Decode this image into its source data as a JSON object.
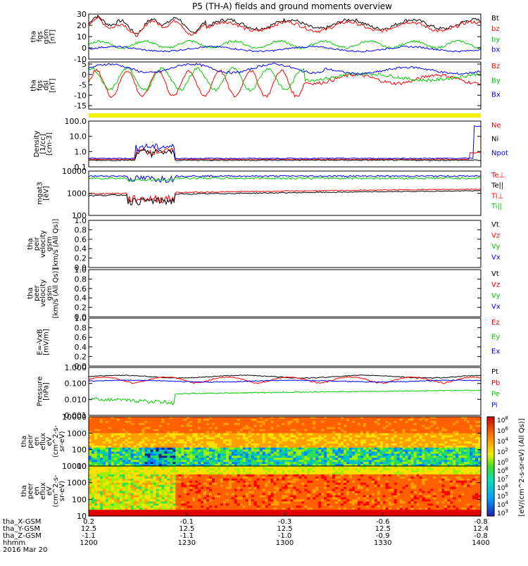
{
  "chart_data": {
    "type": "line",
    "title": "P5 (TH-A) fields and ground moments overview",
    "date": "2016 Mar 20",
    "x_time_labels": [
      "1200",
      "1230",
      "1300",
      "1330",
      "1400"
    ],
    "ephemeris": [
      {
        "name": "tha_X-GSM",
        "values": [
          "0.2",
          "-0.1",
          "-0.3",
          "-0.6",
          "-0.8"
        ]
      },
      {
        "name": "tha_Y-GSM",
        "values": [
          "12.5",
          "12.5",
          "12.5",
          "12.5",
          "12.4"
        ]
      },
      {
        "name": "tha_Z-GSM",
        "values": [
          "-1.1",
          "-1.1",
          "-1.0",
          "-0.9",
          "-0.8"
        ]
      },
      {
        "name": "hhmm",
        "values": [
          "1200",
          "1230",
          "1300",
          "1330",
          "1400"
        ]
      }
    ],
    "panels": [
      {
        "id": "fgs_gsm",
        "ylabel": [
          "tha",
          "fgs",
          "gsm",
          "[nT]"
        ],
        "ticks": [
          "30",
          "20",
          "10",
          "0",
          "-10"
        ],
        "ylim": [
          -10,
          30
        ],
        "legend": [
          {
            "name": "Bt",
            "color": "#000000"
          },
          {
            "name": "bz",
            "color": "#ff0000"
          },
          {
            "name": "by",
            "color": "#00cc00"
          },
          {
            "name": "bx",
            "color": "#0000ff"
          }
        ]
      },
      {
        "id": "fgs_dsl",
        "ylabel": [
          "tha",
          "fgs",
          "dsl",
          "[nT]"
        ],
        "ticks": [
          "5",
          "0",
          "-5",
          "-10",
          "-15"
        ],
        "ylim": [
          -17,
          5
        ],
        "legend": [
          {
            "name": "Bz",
            "color": "#ff0000"
          },
          {
            "name": "By",
            "color": "#00cc00"
          },
          {
            "name": "Bx",
            "color": "#0000ff"
          }
        ]
      },
      {
        "id": "density",
        "ylabel": [
          "Density",
          "[1/cc]",
          "[cm-3]"
        ],
        "ticks": [
          "100.0",
          "10.0",
          "1.0",
          "0.1"
        ],
        "ylim": [
          0.08,
          150
        ],
        "scale": "log",
        "legend": [
          {
            "name": "Ne",
            "color": "#ff0000"
          },
          {
            "name": "Ni",
            "color": "#000000"
          },
          {
            "name": "Npot",
            "color": "#0000ff"
          }
        ]
      },
      {
        "id": "temperature",
        "ylabel": [
          "mgat3",
          "[eV]"
        ],
        "ticks": [
          "10000",
          "1000",
          "100"
        ],
        "ylim": [
          30,
          12000
        ],
        "scale": "log",
        "legend": [
          {
            "name": "Te⊥",
            "color": "#ff0000"
          },
          {
            "name": "Te||",
            "color": "#000000"
          },
          {
            "name": "Ti⊥",
            "color": "#ff0000"
          },
          {
            "name": "Ti||",
            "color": "#00cc00"
          }
        ]
      },
      {
        "id": "peir_velocity",
        "ylabel": [
          "tha",
          "peir",
          "velocity",
          "gsm",
          "[km/s (All Qs)]"
        ],
        "ticks": [
          "1.0",
          "0.8",
          "0.6",
          "0.4",
          "0.2",
          "0.0"
        ],
        "ylim": [
          0,
          1
        ],
        "legend": [
          {
            "name": "Vt",
            "color": "#000000"
          },
          {
            "name": "Vz",
            "color": "#ff0000"
          },
          {
            "name": "Vy",
            "color": "#00cc00"
          },
          {
            "name": "Vx",
            "color": "#0000ff"
          }
        ]
      },
      {
        "id": "peer_velocity",
        "ylabel": [
          "tha",
          "peer",
          "velocity",
          "gsm",
          "[km/s (All Qs)]"
        ],
        "ticks": [
          "1.0",
          "0.8",
          "0.6",
          "0.4",
          "0.2",
          "0.0"
        ],
        "ylim": [
          0,
          1
        ],
        "legend": [
          {
            "name": "Vt",
            "color": "#000000"
          },
          {
            "name": "Vz",
            "color": "#ff0000"
          },
          {
            "name": "Vy",
            "color": "#00cc00"
          },
          {
            "name": "Vx",
            "color": "#0000ff"
          }
        ]
      },
      {
        "id": "efield",
        "ylabel": [
          "E=-VxB",
          "[mV/m]"
        ],
        "ticks": [
          "1.0",
          "0.8",
          "0.6",
          "0.4",
          "0.2",
          "0.0"
        ],
        "ylim": [
          0,
          1
        ],
        "legend": [
          {
            "name": "Ez",
            "color": "#ff0000"
          },
          {
            "name": "Ey",
            "color": "#00cc00"
          },
          {
            "name": "Ex",
            "color": "#0000ff"
          }
        ]
      },
      {
        "id": "pressure",
        "ylabel": [
          "Pressure",
          "[nPa]"
        ],
        "ticks": [
          "1.000",
          "0.100",
          "0.010",
          "0.001"
        ],
        "ylim": [
          0.0008,
          1.2
        ],
        "scale": "log",
        "legend": [
          {
            "name": "Pt",
            "color": "#000000"
          },
          {
            "name": "Pb",
            "color": "#ff0000"
          },
          {
            "name": "Pe",
            "color": "#00cc00"
          },
          {
            "name": "Pi",
            "color": "#0000ff"
          }
        ]
      },
      {
        "id": "peir_spec",
        "type": "heatmap",
        "ylabel": [
          "tha",
          "peir",
          "en",
          "eflux",
          "eV",
          "(cm^2-s-",
          "sr-eV)"
        ],
        "ticks": [
          "10000",
          "1000",
          "100",
          "10"
        ],
        "ylim": [
          5,
          25000
        ],
        "scale": "log"
      },
      {
        "id": "peer_spec",
        "type": "heatmap",
        "ylabel": [
          "tha",
          "peer",
          "en",
          "eflux",
          "eV",
          "(cm^2-s-",
          "sr-eV)"
        ],
        "ticks": [
          "10000",
          "1000",
          "100",
          "10"
        ],
        "ylim": [
          5,
          25000
        ],
        "scale": "log"
      }
    ],
    "colorbar": {
      "label": "[eV/(cm^2-s-sr-eV) (All Qs)]",
      "ticks": [
        "10^8",
        "10^6",
        "10^4",
        "10^2",
        "10^0"
      ],
      "ticks_lower": [
        "10^8",
        "10^7",
        "10^6",
        "10^5",
        "10^4",
        "10^3"
      ]
    }
  }
}
